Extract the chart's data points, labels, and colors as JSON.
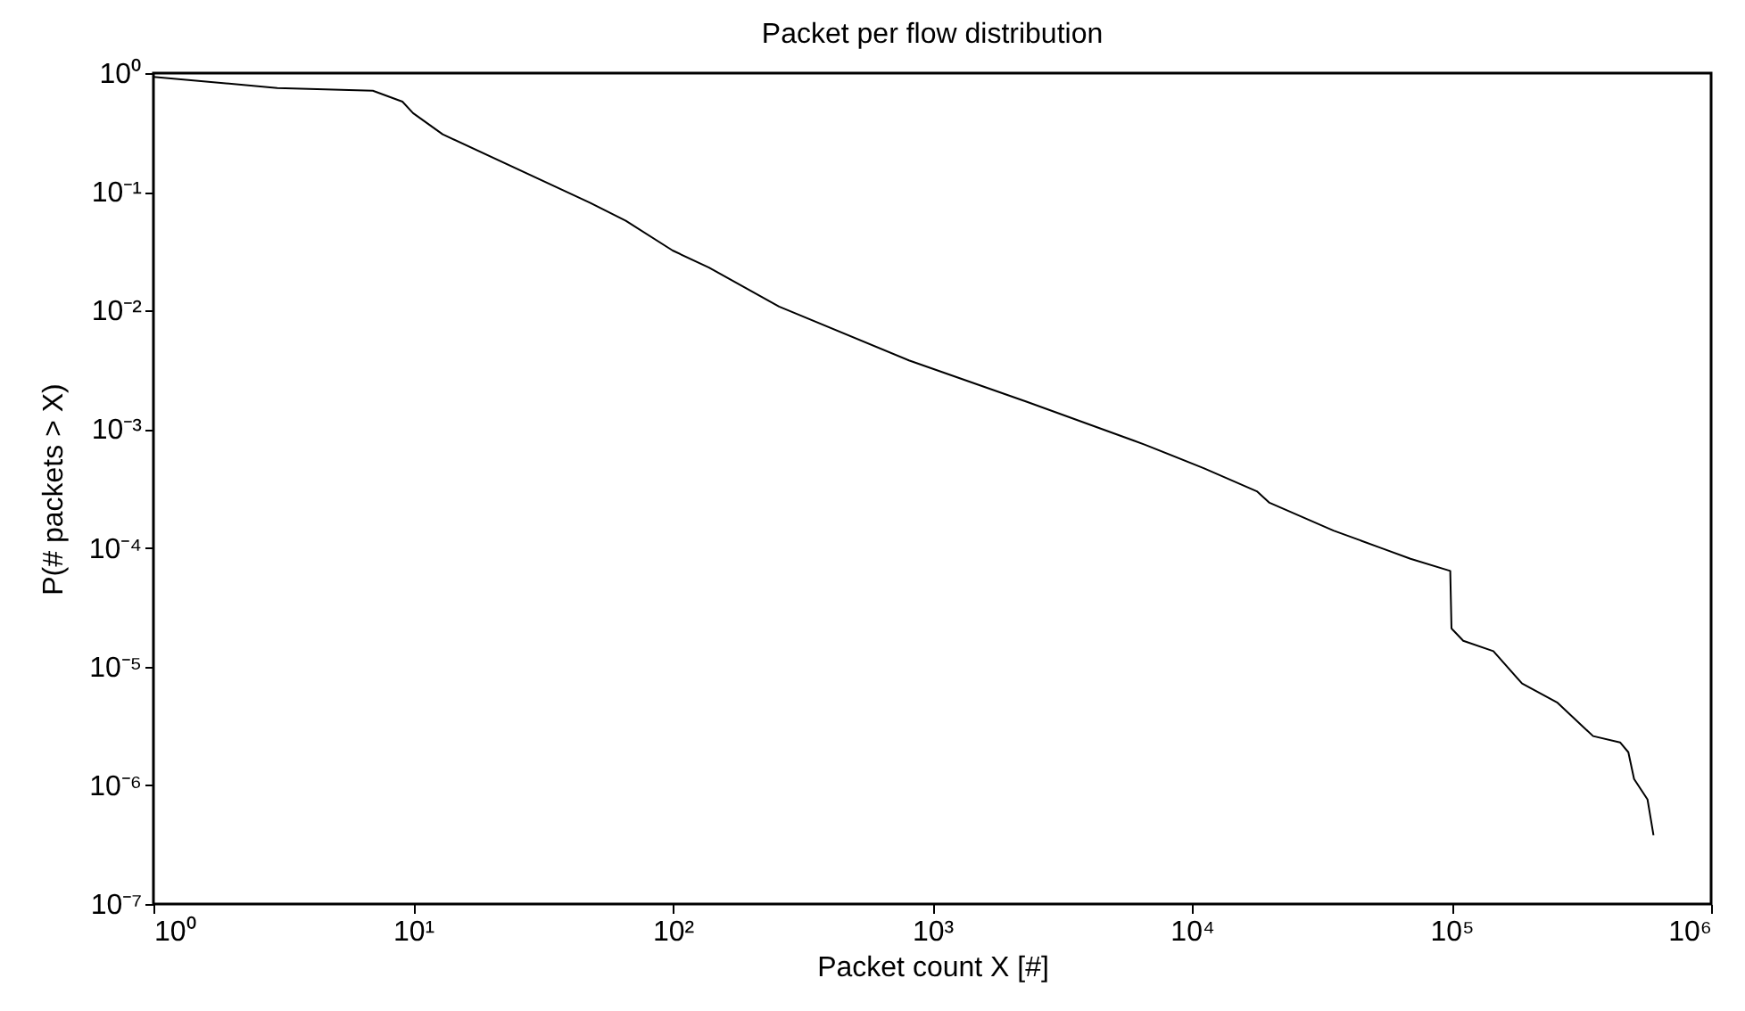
{
  "chart_data": {
    "type": "line",
    "title": "Packet per flow distribution",
    "xlabel": "Packet count X [#]",
    "ylabel": "P(# packets > X)",
    "log": "xy",
    "grid": false,
    "marker": "none",
    "line_style": "solid",
    "xlim": [
      1,
      1000000
    ],
    "ylim": [
      1e-07,
      1
    ],
    "xticks": [
      {
        "value": 1,
        "label": "10⁰"
      },
      {
        "value": 10,
        "label": "10¹"
      },
      {
        "value": 100,
        "label": "10²"
      },
      {
        "value": 1000,
        "label": "10³"
      },
      {
        "value": 10000,
        "label": "10⁴"
      },
      {
        "value": 100000,
        "label": "10⁵"
      },
      {
        "value": 1000000,
        "label": "10⁶"
      }
    ],
    "yticks": [
      {
        "value": 1e-07,
        "label": "10⁻⁷"
      },
      {
        "value": 1e-06,
        "label": "10⁻⁶"
      },
      {
        "value": 1e-05,
        "label": "10⁻⁵"
      },
      {
        "value": 0.0001,
        "label": "10⁻⁴"
      },
      {
        "value": 0.001,
        "label": "10⁻³"
      },
      {
        "value": 0.01,
        "label": "10⁻²"
      },
      {
        "value": 0.1,
        "label": "10⁻¹"
      },
      {
        "value": 1,
        "label": "10⁰"
      }
    ],
    "series": [
      {
        "color": "#000000",
        "x": [
          1,
          3,
          7,
          9.1,
          10,
          13,
          48,
          66,
          100,
          138,
          257,
          813,
          2317,
          6600,
          11100,
          17800,
          19900,
          35100,
          53500,
          69500,
          98900,
          100000,
          101000,
          111000,
          145000,
          187000,
          255000,
          351000,
          446000,
          480000,
          505000,
          569000,
          600000
        ],
        "values": [
          0.93,
          0.75,
          0.71,
          0.575,
          0.46,
          0.305,
          0.081,
          0.057,
          0.032,
          0.023,
          0.0108,
          0.0038,
          0.0017,
          0.00074,
          0.00047,
          0.0003,
          0.00024,
          0.00014,
          0.0001,
          8.1e-05,
          6.4e-05,
          2.1e-05,
          2.05e-05,
          1.65e-05,
          1.35e-05,
          7.2e-06,
          5e-06,
          2.6e-06,
          2.3e-06,
          1.9e-06,
          1.13e-06,
          7.6e-07,
          3.8e-07
        ]
      }
    ]
  }
}
